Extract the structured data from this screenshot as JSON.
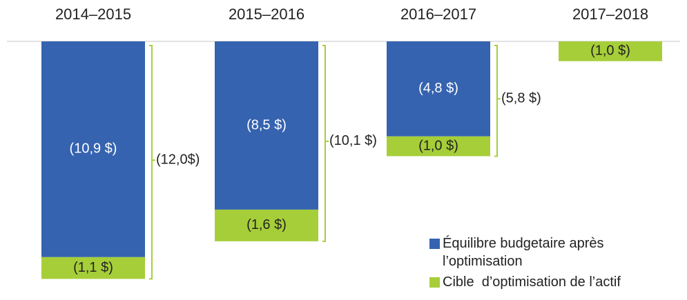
{
  "chart_data": {
    "type": "bar",
    "stacked": true,
    "categories": [
      "2014–2015",
      "2015–2016",
      "2016–2017",
      "2017–2018"
    ],
    "series": [
      {
        "name": "Équilibre budgetaire après l’optimisation",
        "color": "#3563b0",
        "values": [
          -10.9,
          -8.5,
          -4.8,
          null
        ],
        "value_labels": [
          "(10,9 $)",
          "(8,5 $)",
          "(4,8 $)",
          null
        ]
      },
      {
        "name": "Cible  d’optimisation de l’actif",
        "color": "#a6ce39",
        "values": [
          -1.1,
          -1.6,
          -1.0,
          -1.0
        ],
        "value_labels": [
          "(1,1 $)",
          "(1,6 $)",
          "(1,0 $)",
          "(1,0 $)"
        ]
      }
    ],
    "totals": [
      -12.0,
      -10.1,
      -5.8,
      null
    ],
    "total_labels": [
      "(12,0$)",
      "(10,1 $)",
      "(5,8 $)",
      null
    ],
    "legend": "bottom-right"
  }
}
